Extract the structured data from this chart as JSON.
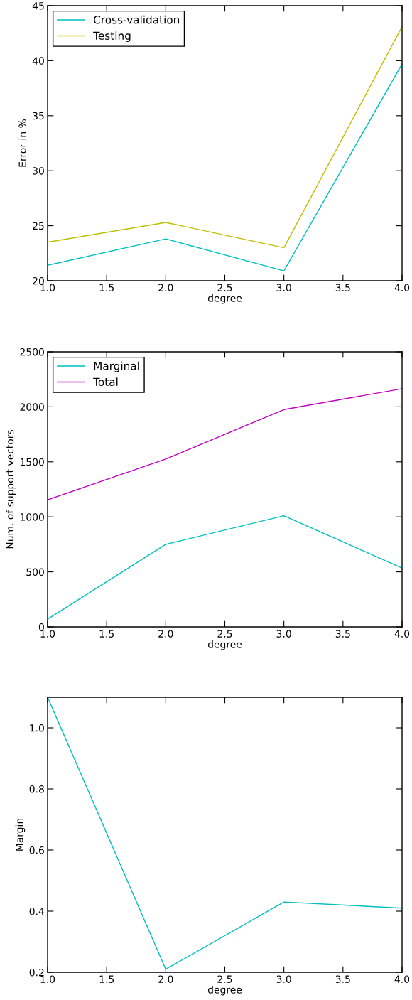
{
  "chart_data": [
    {
      "type": "line",
      "xlabel": "degree",
      "ylabel": "Error in %",
      "x": [
        1.0,
        2.0,
        3.0,
        4.0
      ],
      "series": [
        {
          "name": "Cross-validation",
          "color": "#00bfbf",
          "values": [
            21.4,
            23.8,
            20.9,
            39.7
          ]
        },
        {
          "name": "Testing",
          "color": "#bfbf00",
          "values": [
            23.5,
            25.3,
            23.0,
            43.1
          ]
        }
      ],
      "xlim": [
        1,
        4
      ],
      "xticks": [
        {
          "value": 1,
          "label": "1.0"
        },
        1.5,
        {
          "value": 2,
          "label": "2.0"
        },
        2.5,
        {
          "value": 3,
          "label": "3.0"
        },
        3.5,
        {
          "value": 4,
          "label": "4.0"
        }
      ],
      "ylim": [
        20,
        45
      ],
      "yticks": [
        20,
        25,
        30,
        35,
        40,
        45
      ],
      "legend": "top left",
      "grid": false
    },
    {
      "type": "line",
      "xlabel": "degree",
      "ylabel": "Num. of support vectors",
      "x": [
        1.0,
        2.0,
        3.0,
        4.0
      ],
      "series": [
        {
          "name": "Marginal",
          "color": "#00bfbf",
          "values": [
            70,
            750,
            1010,
            535
          ]
        },
        {
          "name": "Total",
          "color": "#bf00bf",
          "values": [
            1155,
            1525,
            1975,
            2165
          ]
        }
      ],
      "xlim": [
        1,
        4
      ],
      "xticks": [
        {
          "value": 1,
          "label": "1.0"
        },
        1.5,
        {
          "value": 2,
          "label": "2.0"
        },
        2.5,
        {
          "value": 3,
          "label": "3.0"
        },
        3.5,
        {
          "value": 4,
          "label": "4.0"
        }
      ],
      "ylim": [
        0,
        2500
      ],
      "yticks": [
        0,
        500,
        1000,
        1500,
        2000,
        2500
      ],
      "legend": "top left",
      "grid": false
    },
    {
      "type": "line",
      "xlabel": "degree",
      "ylabel": "Margin",
      "x": [
        1.0,
        2.0,
        3.0,
        4.0
      ],
      "series": [
        {
          "color": "#00bfbf",
          "values": [
            1.1,
            0.21,
            0.43,
            0.41
          ]
        }
      ],
      "xlim": [
        1,
        4
      ],
      "xticks": [
        {
          "value": 1,
          "label": "1.0"
        },
        1.5,
        {
          "value": 2,
          "label": "2.0"
        },
        2.5,
        {
          "value": 3,
          "label": "3.0"
        },
        3.5,
        {
          "value": 4,
          "label": "4.0"
        }
      ],
      "ylim": [
        0.2,
        1.1
      ],
      "yticks": [
        0.2,
        0.4,
        0.6,
        0.8,
        {
          "value": 1,
          "label": "1.0"
        }
      ],
      "grid": false
    }
  ]
}
